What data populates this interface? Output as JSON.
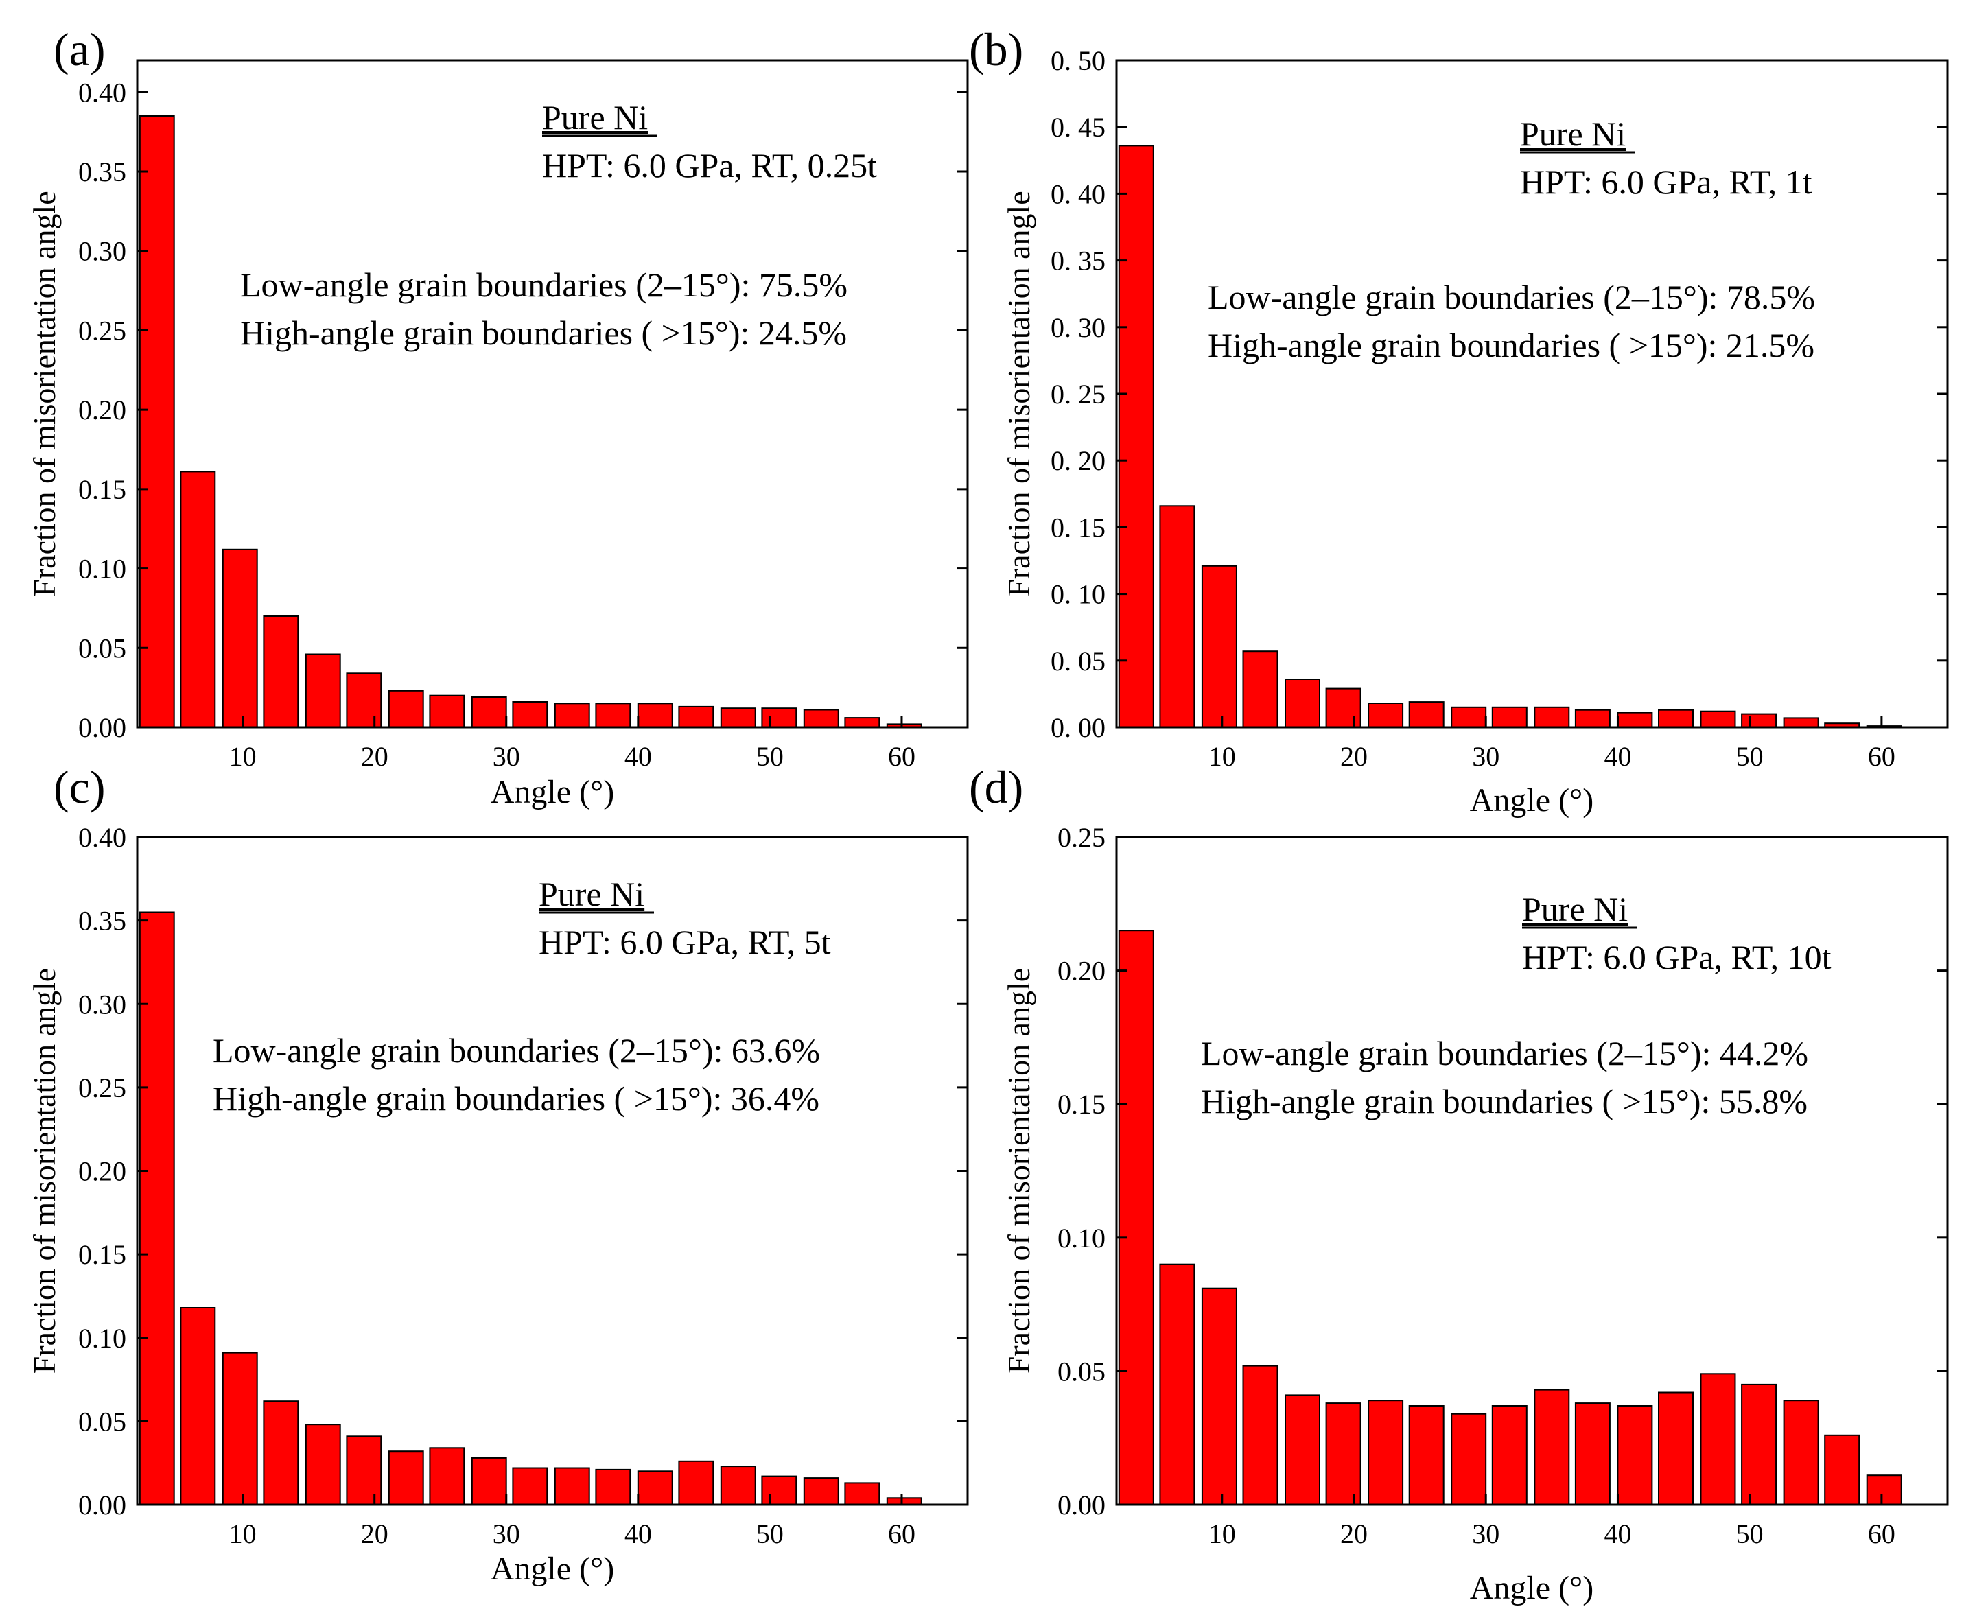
{
  "chart_data": [
    {
      "type": "bar",
      "panel_label": "(a)",
      "sample": "Pure Ni",
      "condition": "HPT: 6.0 GPa, RT, 0.25t",
      "stats": [
        "Low-angle grain boundaries (2–15°): 75.5%",
        "High-angle grain boundaries ( >15°): 24.5%"
      ],
      "xlabel": "Angle (°)",
      "ylabel": "Fraction of misorientation angle",
      "xlim": [
        2,
        65
      ],
      "ylim": [
        0,
        0.42
      ],
      "xticks": [
        10,
        20,
        30,
        40,
        50,
        60
      ],
      "xtick_labels": [
        "10",
        "20",
        "30",
        "40",
        "50",
        "60"
      ],
      "yticks": [
        0,
        0.05,
        0.1,
        0.15,
        0.2,
        0.25,
        0.3,
        0.35,
        0.4
      ],
      "ytick_labels": [
        "0.00",
        "0.05",
        "0.10",
        "0.15",
        "0.20",
        "0.25",
        "0.30",
        "0.35",
        "0.40"
      ],
      "bar_color": "#ff0000",
      "bar_width": 2.6,
      "x": [
        3.5,
        6.6,
        9.8,
        12.9,
        16.1,
        19.2,
        22.4,
        25.5,
        28.7,
        31.8,
        35.0,
        38.1,
        41.3,
        44.4,
        47.6,
        50.7,
        53.9,
        57.0,
        60.2
      ],
      "values": [
        0.385,
        0.161,
        0.112,
        0.07,
        0.046,
        0.034,
        0.023,
        0.02,
        0.019,
        0.016,
        0.015,
        0.015,
        0.015,
        0.013,
        0.012,
        0.012,
        0.011,
        0.006,
        0.002
      ]
    },
    {
      "type": "bar",
      "panel_label": "(b)",
      "sample": "Pure Ni",
      "condition": "HPT: 6.0 GPa, RT, 1t",
      "stats": [
        "Low-angle grain boundaries (2–15°): 78.5%",
        "High-angle grain boundaries ( >15°): 21.5%"
      ],
      "xlabel": "Angle (°)",
      "ylabel": "Fraction of misorientation angle",
      "xlim": [
        2,
        65
      ],
      "ylim": [
        0,
        0.5
      ],
      "xticks": [
        10,
        20,
        30,
        40,
        50,
        60
      ],
      "xtick_labels": [
        "10",
        "20",
        "30",
        "40",
        "50",
        "60"
      ],
      "yticks": [
        0,
        0.05,
        0.1,
        0.15,
        0.2,
        0.25,
        0.3,
        0.35,
        0.4,
        0.45,
        0.5
      ],
      "ytick_labels": [
        "0. 00",
        "0. 05",
        "0. 10",
        "0. 15",
        "0. 20",
        "0. 25",
        "0. 30",
        "0. 35",
        "0. 40",
        "0. 45",
        "0. 50"
      ],
      "bar_color": "#ff0000",
      "bar_width": 2.6,
      "x": [
        3.5,
        6.6,
        9.8,
        12.9,
        16.1,
        19.2,
        22.4,
        25.5,
        28.7,
        31.8,
        35.0,
        38.1,
        41.3,
        44.4,
        47.6,
        50.7,
        53.9,
        57.0,
        60.2
      ],
      "values": [
        0.436,
        0.166,
        0.121,
        0.057,
        0.036,
        0.029,
        0.018,
        0.019,
        0.015,
        0.015,
        0.015,
        0.013,
        0.011,
        0.013,
        0.012,
        0.01,
        0.007,
        0.003,
        0.001
      ]
    },
    {
      "type": "bar",
      "panel_label": "(c)",
      "sample": "Pure Ni",
      "condition": "HPT: 6.0 GPa, RT, 5t",
      "stats": [
        "Low-angle grain boundaries (2–15°): 63.6%",
        "High-angle grain boundaries ( >15°): 36.4%"
      ],
      "xlabel": "Angle (°)",
      "ylabel": "Fraction of misorientation angle",
      "xlim": [
        2,
        65
      ],
      "ylim": [
        0,
        0.4
      ],
      "xticks": [
        10,
        20,
        30,
        40,
        50,
        60
      ],
      "xtick_labels": [
        "10",
        "20",
        "30",
        "40",
        "50",
        "60"
      ],
      "yticks": [
        0,
        0.05,
        0.1,
        0.15,
        0.2,
        0.25,
        0.3,
        0.35,
        0.4
      ],
      "ytick_labels": [
        "0.00",
        "0.05",
        "0.10",
        "0.15",
        "0.20",
        "0.25",
        "0.30",
        "0.35",
        "0.40"
      ],
      "bar_color": "#ff0000",
      "bar_width": 2.6,
      "x": [
        3.5,
        6.6,
        9.8,
        12.9,
        16.1,
        19.2,
        22.4,
        25.5,
        28.7,
        31.8,
        35.0,
        38.1,
        41.3,
        44.4,
        47.6,
        50.7,
        53.9,
        57.0,
        60.2
      ],
      "values": [
        0.355,
        0.118,
        0.091,
        0.062,
        0.048,
        0.041,
        0.032,
        0.034,
        0.028,
        0.022,
        0.022,
        0.021,
        0.02,
        0.026,
        0.023,
        0.017,
        0.016,
        0.013,
        0.004
      ]
    },
    {
      "type": "bar",
      "panel_label": "(d)",
      "sample": "Pure Ni",
      "condition": "HPT: 6.0 GPa, RT, 10t",
      "stats": [
        "Low-angle grain boundaries (2–15°): 44.2%",
        "High-angle grain boundaries ( >15°): 55.8%"
      ],
      "xlabel": "Angle (°)",
      "ylabel": "Fraction of misorientation angle",
      "xlim": [
        2,
        65
      ],
      "ylim": [
        0,
        0.25
      ],
      "xticks": [
        10,
        20,
        30,
        40,
        50,
        60
      ],
      "xtick_labels": [
        "10",
        "20",
        "30",
        "40",
        "50",
        "60"
      ],
      "yticks": [
        0,
        0.05,
        0.1,
        0.15,
        0.2,
        0.25
      ],
      "ytick_labels": [
        "0.00",
        "0.05",
        "0.10",
        "0.15",
        "0.20",
        "0.25"
      ],
      "bar_color": "#ff0000",
      "bar_width": 2.6,
      "x": [
        3.5,
        6.6,
        9.8,
        12.9,
        16.1,
        19.2,
        22.4,
        25.5,
        28.7,
        31.8,
        35.0,
        38.1,
        41.3,
        44.4,
        47.6,
        50.7,
        53.9,
        57.0,
        60.2
      ],
      "values": [
        0.215,
        0.09,
        0.081,
        0.052,
        0.041,
        0.038,
        0.039,
        0.037,
        0.034,
        0.037,
        0.043,
        0.038,
        0.037,
        0.042,
        0.049,
        0.045,
        0.039,
        0.026,
        0.011
      ]
    }
  ]
}
